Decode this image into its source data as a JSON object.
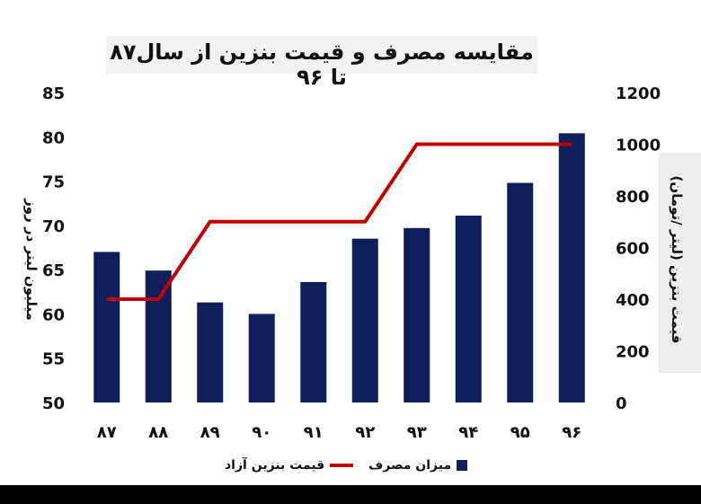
{
  "colors": {
    "bar": "#0f1f5c",
    "line": "#c00000"
  },
  "chart_data": {
    "type": "bar",
    "title": "مقایسه مصرف و قیمت بنزین از سال۸۷ تا ۹۶",
    "categories": [
      "۸۷",
      "۸۸",
      "۸۹",
      "۹۰",
      "۹۱",
      "۹۲",
      "۹۳",
      "۹۴",
      "۹۵",
      "۹۶"
    ],
    "series": [
      {
        "name": "میزان مصرف",
        "type": "bar",
        "axis": "left",
        "values": [
          67.0,
          64.9,
          61.3,
          60.0,
          63.6,
          68.5,
          69.7,
          71.1,
          74.8,
          80.4
        ]
      },
      {
        "name": "قیمت بنزین آزاد",
        "type": "line",
        "axis": "right",
        "values": [
          400,
          400,
          700,
          700,
          700,
          700,
          1000,
          1000,
          1000,
          1000
        ]
      }
    ],
    "ylabel": "میلیون  لیتر  در روز",
    "ylim": [
      50,
      85
    ],
    "yticks": [
      "50",
      "55",
      "60",
      "65",
      "70",
      "75",
      "80",
      "85"
    ],
    "y2label": "قیمت بنزین (لیتر /تومان)",
    "y2lim": [
      0,
      1200
    ],
    "y2ticks": [
      "0",
      "200",
      "400",
      "600",
      "800",
      "1000",
      "1200"
    ],
    "legend_position": "bottom",
    "grid": false
  }
}
